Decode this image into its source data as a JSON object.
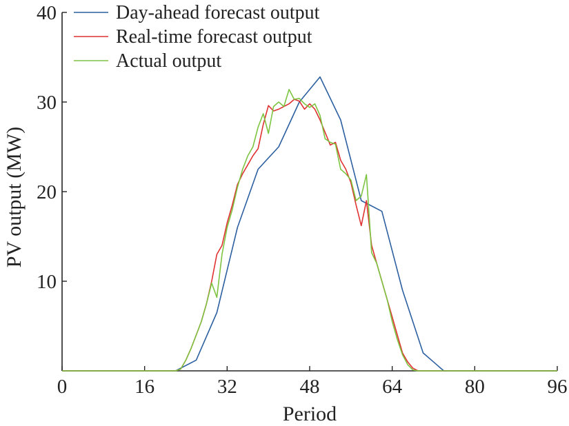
{
  "chart_data": {
    "type": "line",
    "title": "",
    "xlabel": "Period",
    "ylabel": "PV output (MW)",
    "xlim": [
      0,
      96
    ],
    "ylim": [
      0,
      40
    ],
    "xticks": [
      0,
      16,
      32,
      48,
      64,
      80,
      96
    ],
    "yticks": [
      10,
      20,
      30,
      40
    ],
    "grid": false,
    "legend_position": "top-left",
    "series": [
      {
        "name": "Day-ahead forecast output",
        "color": "#2c5fa0",
        "x": [
          0,
          22,
          26,
          30,
          34,
          38,
          42,
          46,
          50,
          54,
          58,
          62,
          66,
          70,
          74,
          76,
          96
        ],
        "y": [
          0,
          0,
          1.2,
          6.5,
          16,
          22.5,
          25,
          30,
          32.8,
          28,
          19,
          17.8,
          9,
          2,
          0,
          0,
          0
        ]
      },
      {
        "name": "Real-time forecast output",
        "color": "#e03030",
        "x": [
          0,
          20,
          22,
          23,
          24,
          25,
          26,
          27,
          28,
          29,
          30,
          31,
          32,
          33,
          34,
          35,
          36,
          37,
          38,
          39,
          40,
          41,
          42,
          43,
          44,
          45,
          46,
          47,
          48,
          49,
          50,
          51,
          52,
          53,
          54,
          55,
          56,
          57,
          58,
          59,
          60,
          61,
          62,
          63,
          64,
          65,
          66,
          67,
          68,
          69,
          70,
          71,
          72,
          73,
          96
        ],
        "y": [
          0,
          0,
          0,
          0.2,
          1.2,
          2.5,
          4,
          5.5,
          7.5,
          10,
          13,
          14,
          16.5,
          18.5,
          20.8,
          22,
          23,
          24,
          24.8,
          27.5,
          29.6,
          29,
          29.2,
          29.5,
          29.8,
          30.3,
          30.1,
          29.2,
          29.8,
          29.2,
          28,
          26.6,
          25.2,
          25.5,
          23.5,
          22.5,
          21,
          18.5,
          16.2,
          19,
          14,
          12,
          10,
          8,
          6,
          4,
          2,
          1,
          0.3,
          0,
          0,
          0,
          0,
          0,
          0
        ]
      },
      {
        "name": "Actual output",
        "color": "#7cc440",
        "x": [
          0,
          20,
          22,
          23,
          24,
          25,
          26,
          27,
          28,
          29,
          30,
          31,
          32,
          33,
          34,
          35,
          36,
          37,
          38,
          39,
          40,
          41,
          42,
          43,
          44,
          45,
          46,
          47,
          48,
          49,
          50,
          51,
          52,
          53,
          54,
          55,
          56,
          57,
          58,
          59,
          60,
          61,
          62,
          63,
          64,
          65,
          66,
          67,
          68,
          69,
          70,
          71,
          72,
          73,
          96
        ],
        "y": [
          0,
          0,
          0,
          0.2,
          1.2,
          2.5,
          4,
          5.5,
          7.5,
          9.8,
          8.2,
          13,
          16,
          18,
          20.5,
          22.5,
          24,
          25,
          27.2,
          28.7,
          26.5,
          29.5,
          30,
          29.5,
          31.4,
          30.3,
          30.4,
          29.8,
          29.4,
          29.8,
          28.5,
          25.9,
          25.5,
          25.3,
          22.5,
          22,
          21.3,
          19,
          19.5,
          21.9,
          13.2,
          12,
          10,
          8,
          5.5,
          3.5,
          1.8,
          0.7,
          0.1,
          0,
          0,
          0,
          0,
          0,
          0
        ]
      }
    ]
  }
}
